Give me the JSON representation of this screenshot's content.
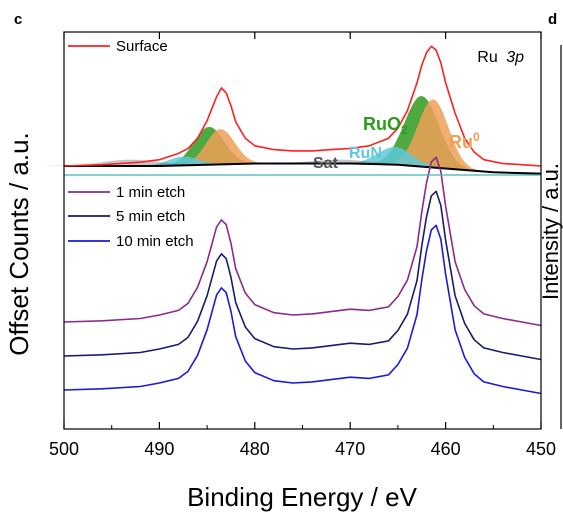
{
  "panel_labels": [
    "c",
    "d"
  ],
  "chart_data": {
    "type": "line",
    "title": "",
    "xlabel": "Binding Energy / eV",
    "ylabel": "Offset Counts / a.u.",
    "xlim": [
      500,
      450
    ],
    "x_reversed": true,
    "x_ticks": [
      500,
      490,
      480,
      470,
      460,
      450
    ],
    "x_tick_labels": [
      "500",
      "490",
      "480",
      "470",
      "460",
      "450"
    ],
    "y_ticks_shown": false,
    "grid": false,
    "legend_position": "top-left",
    "region_label": {
      "text": "Ru",
      "orbital": "3p"
    },
    "separator_line": {
      "color": "#3fb7b7"
    },
    "series": [
      {
        "name": "Surface",
        "color": "#ff2020",
        "x": [
          500,
          496,
          492,
          490,
          488,
          487,
          486,
          485,
          484,
          483.5,
          483,
          482.5,
          482,
          481,
          480,
          478,
          476,
          474,
          472,
          470,
          468,
          466,
          465,
          464,
          463,
          462.5,
          462,
          461.5,
          461,
          460.5,
          460,
          459,
          458,
          457,
          456,
          454,
          452,
          450
        ],
        "y": [
          0.0,
          0.01,
          0.03,
          0.05,
          0.1,
          0.14,
          0.22,
          0.36,
          0.55,
          0.62,
          0.58,
          0.48,
          0.35,
          0.22,
          0.16,
          0.13,
          0.12,
          0.12,
          0.13,
          0.14,
          0.16,
          0.22,
          0.3,
          0.44,
          0.66,
          0.8,
          0.9,
          0.95,
          0.92,
          0.82,
          0.66,
          0.42,
          0.22,
          0.11,
          0.05,
          0.02,
          0.01,
          0.0
        ]
      },
      {
        "name": "1 min etch",
        "color": "#8b2a8b",
        "x": [
          500,
          496,
          492,
          490,
          488,
          487,
          486,
          485,
          484,
          483.5,
          483,
          482.5,
          482,
          481,
          480,
          478,
          476,
          474,
          472,
          470,
          468,
          466,
          465,
          464,
          463,
          462.5,
          462,
          461.5,
          461,
          460.5,
          460,
          459,
          458,
          457,
          456,
          454,
          452,
          450
        ],
        "y": [
          0.0,
          0.01,
          0.03,
          0.06,
          0.1,
          0.16,
          0.3,
          0.52,
          0.82,
          0.88,
          0.84,
          0.68,
          0.46,
          0.25,
          0.15,
          0.08,
          0.06,
          0.07,
          0.09,
          0.11,
          0.1,
          0.13,
          0.22,
          0.36,
          0.65,
          0.95,
          1.2,
          1.38,
          1.42,
          1.3,
          1.0,
          0.52,
          0.28,
          0.14,
          0.07,
          0.03,
          0.0,
          -0.03
        ]
      },
      {
        "name": "5 min etch",
        "color": "#1a1a6e",
        "x": [
          500,
          496,
          492,
          490,
          488,
          487,
          486,
          485,
          484,
          483.5,
          483,
          482.5,
          482,
          481,
          480,
          478,
          476,
          474,
          472,
          470,
          468,
          466,
          465,
          464,
          463,
          462.5,
          462,
          461.5,
          461,
          460.5,
          460,
          459,
          458,
          457,
          456,
          454,
          452,
          450
        ],
        "y": [
          0.0,
          0.01,
          0.03,
          0.06,
          0.1,
          0.16,
          0.3,
          0.52,
          0.82,
          0.88,
          0.84,
          0.68,
          0.46,
          0.25,
          0.15,
          0.08,
          0.06,
          0.07,
          0.09,
          0.11,
          0.1,
          0.13,
          0.22,
          0.36,
          0.65,
          0.95,
          1.2,
          1.38,
          1.42,
          1.3,
          1.0,
          0.52,
          0.28,
          0.14,
          0.07,
          0.03,
          0.0,
          -0.03
        ]
      },
      {
        "name": "10 min etch",
        "color": "#1a1adc",
        "x": [
          500,
          496,
          492,
          490,
          488,
          487,
          486,
          485,
          484,
          483.5,
          483,
          482.5,
          482,
          481,
          480,
          478,
          476,
          474,
          472,
          470,
          468,
          466,
          465,
          464,
          463,
          462.5,
          462,
          461.5,
          461,
          460.5,
          460,
          459,
          458,
          457,
          456,
          454,
          452,
          450
        ],
        "y": [
          0.0,
          0.01,
          0.03,
          0.06,
          0.1,
          0.16,
          0.3,
          0.52,
          0.82,
          0.88,
          0.84,
          0.68,
          0.46,
          0.25,
          0.15,
          0.08,
          0.06,
          0.07,
          0.09,
          0.11,
          0.1,
          0.13,
          0.22,
          0.36,
          0.65,
          0.95,
          1.2,
          1.38,
          1.42,
          1.3,
          1.0,
          0.52,
          0.28,
          0.14,
          0.07,
          0.03,
          0.0,
          -0.03
        ]
      }
    ],
    "fit_components": [
      {
        "label": "RuO",
        "subscript": "2",
        "color": "#2e9a1e",
        "peaks": [
          {
            "center": 484.8,
            "height": 0.3,
            "width": 1.6
          },
          {
            "center": 462.5,
            "height": 0.56,
            "width": 1.8
          }
        ]
      },
      {
        "label": "Ru",
        "superscript": "0",
        "color": "#f0a058",
        "peaks": [
          {
            "center": 483.6,
            "height": 0.28,
            "width": 1.5
          },
          {
            "center": 461.3,
            "height": 0.54,
            "width": 1.6
          }
        ]
      },
      {
        "label": "RuN",
        "color": "#5ec8d8",
        "peaks": [
          {
            "center": 487.5,
            "height": 0.07,
            "width": 1.6
          },
          {
            "center": 465.3,
            "height": 0.14,
            "width": 1.8
          }
        ]
      },
      {
        "label": "Sat",
        "color": "#555555",
        "peaks": [
          {
            "center": 493,
            "height": 0.05,
            "width": 3.0
          },
          {
            "center": 471,
            "height": 0.03,
            "width": 3.0
          }
        ]
      }
    ],
    "background_line": {
      "color": "#000000",
      "x": [
        500,
        495,
        490,
        485,
        480,
        475,
        470,
        465,
        460,
        455,
        450
      ],
      "y": [
        0.0,
        0.0,
        0.0,
        0.01,
        0.02,
        0.02,
        0.02,
        0.01,
        -0.02,
        -0.05,
        -0.06
      ]
    }
  }
}
